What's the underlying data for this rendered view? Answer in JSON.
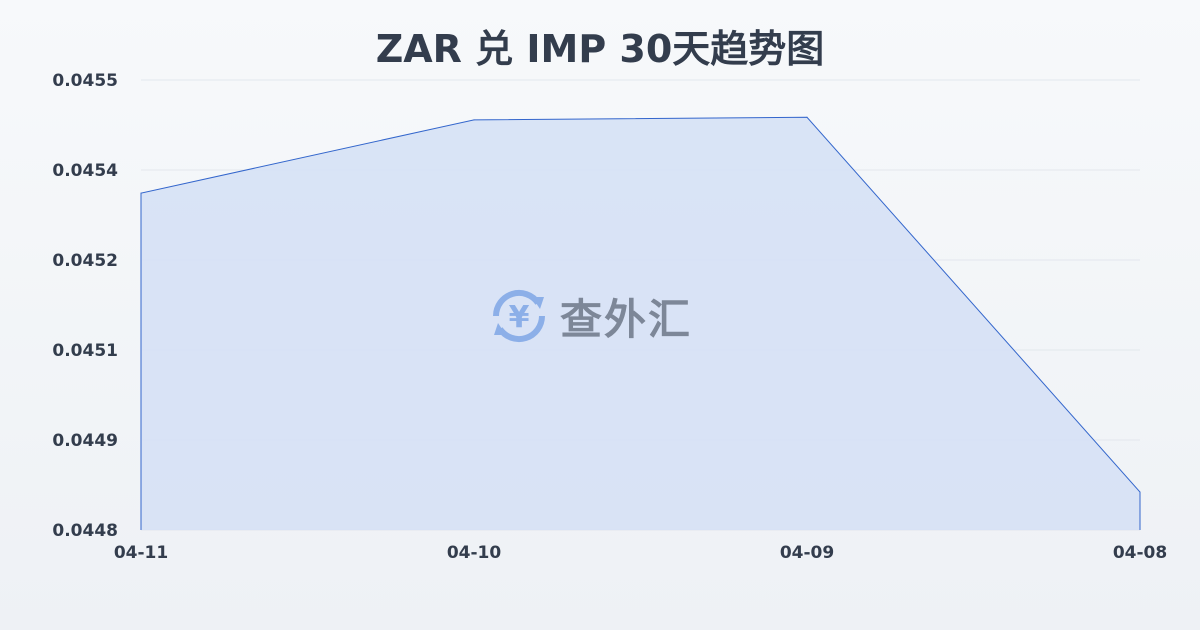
{
  "chart_data": {
    "type": "area",
    "title": "ZAR 兑 IMP 30天趋势图",
    "categories": [
      "04-11",
      "04-10",
      "04-09",
      "04-08"
    ],
    "values": [
      0.045324,
      0.045438,
      0.045442,
      0.044859
    ],
    "ylim": [
      0.0448,
      0.0455
    ],
    "yticks": [
      "0.0448",
      "0.0449",
      "0.0451",
      "0.0452",
      "0.0454",
      "0.0455"
    ],
    "grid": true,
    "colors": {
      "line": "#3366cc",
      "fill": "#d6e1f5"
    }
  },
  "watermark": {
    "text": "查外汇",
    "icon": "yen-exchange-icon"
  }
}
